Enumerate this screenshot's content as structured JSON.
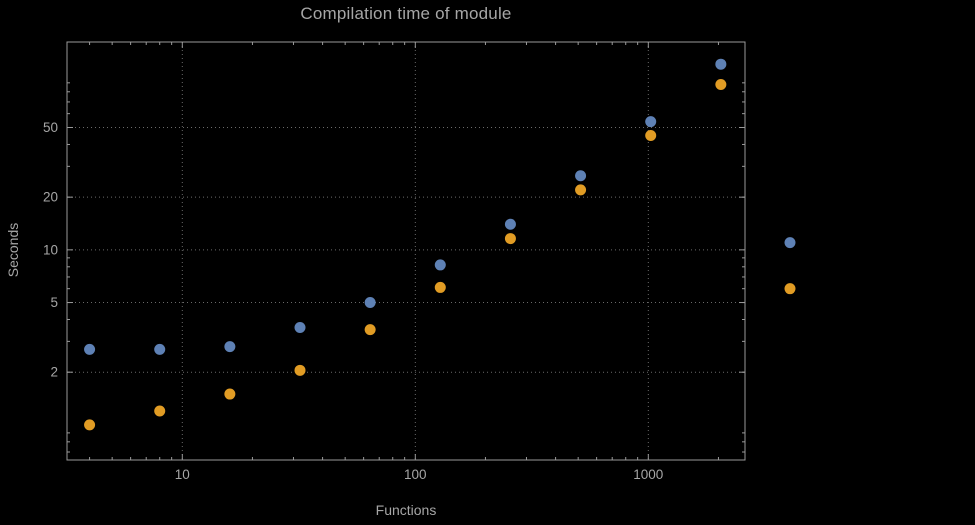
{
  "colors": {
    "background": "#000000",
    "text": "#a6a6a6",
    "frame": "#9a9a9a",
    "grid": "#6a6a6a",
    "series_blue": "#5e81b5",
    "series_orange": "#e19c24"
  },
  "chart_data": {
    "type": "scatter",
    "title": "Compilation time of module",
    "xlabel": "Functions",
    "ylabel": "Seconds",
    "x_scale": "log",
    "y_scale": "log",
    "xlim": [
      3.2,
      2600
    ],
    "ylim": [
      0.63,
      154
    ],
    "x_ticks": [
      10,
      100,
      1000
    ],
    "y_ticks": [
      2,
      5,
      10,
      20,
      50
    ],
    "grid": "dotted",
    "x": [
      4,
      8,
      16,
      32,
      64,
      128,
      256,
      512,
      1024,
      2048
    ],
    "series": [
      {
        "name": "series-1-blue",
        "color": "#5e81b5",
        "values": [
          2.7,
          2.7,
          2.8,
          3.6,
          5.0,
          8.2,
          14,
          26.5,
          54,
          115
        ]
      },
      {
        "name": "series-2-orange",
        "color": "#e19c24",
        "values": [
          1.0,
          1.2,
          1.5,
          2.05,
          3.5,
          6.1,
          11.6,
          22,
          45,
          88
        ]
      }
    ],
    "legend": {
      "position": "right-outside",
      "labels_visible": false,
      "marker_values": [
        11,
        6
      ]
    }
  }
}
